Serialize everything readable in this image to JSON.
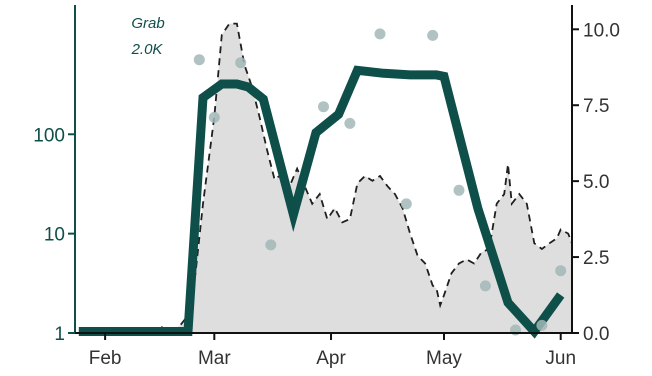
{
  "chart_data": {
    "type": "line",
    "title": "",
    "xlabel": "",
    "ylabel_left": "",
    "ylabel_right": "",
    "grid": false,
    "colors": {
      "accent": "#0f4f4a",
      "area_fill": "#dedede",
      "dashed": "#1f1f1f",
      "points": "#a2b7b7",
      "right_axis": "#111111"
    },
    "x_axis": {
      "range": [
        "2020-01-24",
        "2020-06-04"
      ],
      "ticks": [
        {
          "date": "2020-02-01",
          "label": "Feb"
        },
        {
          "date": "2020-03-01",
          "label": "Mar"
        },
        {
          "date": "2020-04-01",
          "label": "Apr"
        },
        {
          "date": "2020-05-01",
          "label": "May"
        },
        {
          "date": "2020-06-01",
          "label": "Jun"
        }
      ]
    },
    "y_left": {
      "scale": "log",
      "range": [
        1,
        2000
      ],
      "ticks": [
        {
          "value": 1,
          "label": "1"
        },
        {
          "value": 10,
          "label": "10"
        },
        {
          "value": 100,
          "label": "100"
        }
      ]
    },
    "y_right": {
      "scale": "linear",
      "range": [
        0,
        10.8
      ],
      "ticks": [
        {
          "value": 0,
          "label": "0.0"
        },
        {
          "value": 2.5,
          "label": "2.5"
        },
        {
          "value": 5,
          "label": "5.0"
        },
        {
          "value": 7.5,
          "label": "7.5"
        },
        {
          "value": 10,
          "label": "10.0"
        }
      ]
    },
    "annotation": {
      "line1": "Grab",
      "line2": "2.0K"
    },
    "series": [
      {
        "kind": "area_dashed",
        "axis": "left",
        "points": [
          [
            "2020-01-25",
            1.0
          ],
          [
            "2020-02-12",
            1.0
          ],
          [
            "2020-02-14",
            1.1
          ],
          [
            "2020-02-16",
            1.15
          ],
          [
            "2020-02-18",
            1.0
          ],
          [
            "2020-02-21",
            1.2
          ],
          [
            "2020-02-23",
            1.5
          ],
          [
            "2020-02-25",
            4
          ],
          [
            "2020-02-27",
            20
          ],
          [
            "2020-03-01",
            150
          ],
          [
            "2020-03-03",
            1000
          ],
          [
            "2020-03-05",
            1300
          ],
          [
            "2020-03-07",
            1300
          ],
          [
            "2020-03-09",
            500
          ],
          [
            "2020-03-11",
            300
          ],
          [
            "2020-03-13",
            150
          ],
          [
            "2020-03-15",
            70
          ],
          [
            "2020-03-17",
            35
          ],
          [
            "2020-03-19",
            40
          ],
          [
            "2020-03-21",
            30
          ],
          [
            "2020-03-23",
            45
          ],
          [
            "2020-03-25",
            30
          ],
          [
            "2020-03-27",
            20
          ],
          [
            "2020-03-29",
            25
          ],
          [
            "2020-03-31",
            14
          ],
          [
            "2020-04-02",
            18
          ],
          [
            "2020-04-04",
            13
          ],
          [
            "2020-04-06",
            14
          ],
          [
            "2020-04-08",
            32
          ],
          [
            "2020-04-10",
            38
          ],
          [
            "2020-04-12",
            34
          ],
          [
            "2020-04-14",
            38
          ],
          [
            "2020-04-16",
            30
          ],
          [
            "2020-04-18",
            25
          ],
          [
            "2020-04-20",
            18
          ],
          [
            "2020-04-22",
            10
          ],
          [
            "2020-04-24",
            6
          ],
          [
            "2020-04-26",
            5
          ],
          [
            "2020-04-28",
            3
          ],
          [
            "2020-04-29",
            2.8
          ],
          [
            "2020-04-30",
            1.9
          ],
          [
            "2020-05-01",
            2.4
          ],
          [
            "2020-05-03",
            4
          ],
          [
            "2020-05-05",
            5
          ],
          [
            "2020-05-07",
            5.5
          ],
          [
            "2020-05-09",
            5
          ],
          [
            "2020-05-11",
            6.5
          ],
          [
            "2020-05-13",
            7
          ],
          [
            "2020-05-15",
            20
          ],
          [
            "2020-05-17",
            25
          ],
          [
            "2020-05-18",
            50
          ],
          [
            "2020-05-19",
            20
          ],
          [
            "2020-05-21",
            25
          ],
          [
            "2020-05-23",
            20
          ],
          [
            "2020-05-25",
            8
          ],
          [
            "2020-05-27",
            7
          ],
          [
            "2020-05-29",
            8
          ],
          [
            "2020-05-31",
            9
          ],
          [
            "2020-06-01",
            11
          ],
          [
            "2020-06-03",
            10
          ],
          [
            "2020-06-04",
            8
          ]
        ]
      },
      {
        "kind": "line",
        "axis": "right",
        "points": [
          [
            "2020-01-25",
            0.05
          ],
          [
            "2020-02-12",
            0.05
          ],
          [
            "2020-02-17",
            0.05
          ],
          [
            "2020-02-23",
            0.05
          ],
          [
            "2020-02-27",
            7.75
          ],
          [
            "2020-03-03",
            8.2
          ],
          [
            "2020-03-07",
            8.2
          ],
          [
            "2020-03-10",
            8.1
          ],
          [
            "2020-03-14",
            7.7
          ],
          [
            "2020-03-22",
            3.9
          ],
          [
            "2020-03-28",
            6.6
          ],
          [
            "2020-04-03",
            7.2
          ],
          [
            "2020-04-08",
            8.65
          ],
          [
            "2020-04-15",
            8.55
          ],
          [
            "2020-04-22",
            8.5
          ],
          [
            "2020-04-29",
            8.5
          ],
          [
            "2020-05-01",
            8.45
          ],
          [
            "2020-05-10",
            4.1
          ],
          [
            "2020-05-18",
            1.0
          ],
          [
            "2020-05-25",
            0.05
          ],
          [
            "2020-06-01",
            1.25
          ]
        ]
      },
      {
        "kind": "scatter",
        "axis": "right",
        "points": [
          [
            "2020-02-26",
            9.0
          ],
          [
            "2020-03-01",
            7.1
          ],
          [
            "2020-03-08",
            8.9
          ],
          [
            "2020-03-16",
            2.9
          ],
          [
            "2020-03-30",
            7.45
          ],
          [
            "2020-04-06",
            6.9
          ],
          [
            "2020-04-14",
            9.85
          ],
          [
            "2020-04-21",
            4.25
          ],
          [
            "2020-04-28",
            9.8
          ],
          [
            "2020-05-05",
            4.7
          ],
          [
            "2020-05-12",
            1.55
          ],
          [
            "2020-05-20",
            0.1
          ],
          [
            "2020-05-27",
            0.25
          ],
          [
            "2020-06-01",
            2.05
          ]
        ]
      }
    ]
  }
}
